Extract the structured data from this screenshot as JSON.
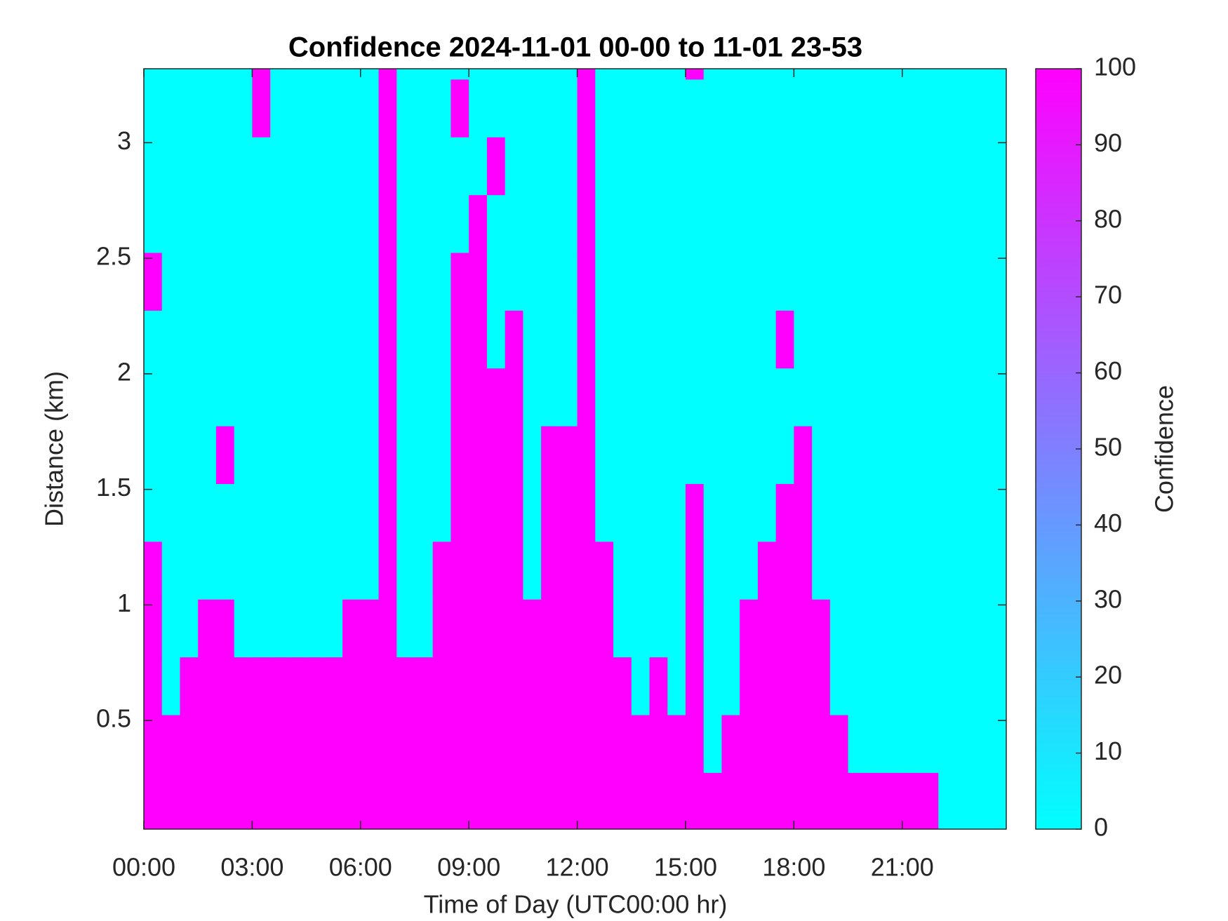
{
  "chart_data": {
    "type": "heatmap",
    "title": "Confidence 2024-11-01 00-00 to 11-01 23-53",
    "xlabel": "Time of Day (UTC00:00 hr)",
    "ylabel": "Distance (km)",
    "colorbar_label": "Confidence",
    "colormap": [
      "#00ffff",
      "#ff00ff"
    ],
    "clim": [
      0,
      100
    ],
    "cticks": [
      0,
      10,
      20,
      30,
      40,
      50,
      60,
      70,
      80,
      90,
      100
    ],
    "xlim": [
      0,
      23.88
    ],
    "xticks": [
      {
        "value": 0,
        "label": "00:00"
      },
      {
        "value": 3,
        "label": "03:00"
      },
      {
        "value": 6,
        "label": "06:00"
      },
      {
        "value": 9,
        "label": "09:00"
      },
      {
        "value": 12,
        "label": "12:00"
      },
      {
        "value": 15,
        "label": "15:00"
      },
      {
        "value": 18,
        "label": "18:00"
      },
      {
        "value": 21,
        "label": "21:00"
      }
    ],
    "ylim": [
      0.03,
      3.32
    ],
    "yticks": [
      0.5,
      1,
      1.5,
      2,
      2.5,
      3
    ],
    "x": [
      0.25,
      0.75,
      1.25,
      1.75,
      2.25,
      2.75,
      3.25,
      3.75,
      4.25,
      4.75,
      5.25,
      5.75,
      6.25,
      6.75,
      7.25,
      7.75,
      8.25,
      8.75,
      9.25,
      9.75,
      10.25,
      10.75,
      11.25,
      11.75,
      12.25,
      12.75,
      13.25,
      13.75,
      14.25,
      14.75,
      15.25,
      15.75,
      16.25,
      16.75,
      17.25,
      17.75,
      18.25,
      18.75,
      19.25,
      19.75,
      20.25,
      20.75,
      21.25,
      21.75,
      22.25,
      22.75,
      23.25,
      23.75
    ],
    "y": [
      0.15,
      0.4,
      0.65,
      0.9,
      1.15,
      1.4,
      1.65,
      1.9,
      2.15,
      2.4,
      2.65,
      2.9,
      3.15,
      3.4
    ],
    "z": [
      [
        100,
        100,
        100,
        100,
        100,
        100,
        100,
        100,
        100,
        100,
        100,
        100,
        100,
        100,
        100,
        100,
        100,
        100,
        100,
        100,
        100,
        100,
        100,
        100,
        100,
        100,
        100,
        100,
        100,
        100,
        100,
        100,
        100,
        100,
        100,
        100,
        100,
        100,
        100,
        100,
        100,
        100,
        100,
        100,
        0,
        0,
        0,
        0
      ],
      [
        100,
        100,
        100,
        100,
        100,
        100,
        100,
        100,
        100,
        100,
        100,
        100,
        100,
        100,
        100,
        100,
        100,
        100,
        100,
        100,
        100,
        100,
        100,
        100,
        100,
        100,
        100,
        100,
        100,
        100,
        100,
        0,
        100,
        100,
        100,
        100,
        100,
        100,
        100,
        0,
        0,
        0,
        0,
        0,
        0,
        0,
        0,
        0
      ],
      [
        100,
        0,
        100,
        100,
        100,
        100,
        100,
        100,
        100,
        100,
        100,
        100,
        100,
        100,
        100,
        100,
        100,
        100,
        100,
        100,
        100,
        100,
        100,
        100,
        100,
        100,
        100,
        0,
        100,
        0,
        100,
        0,
        0,
        100,
        100,
        100,
        100,
        100,
        0,
        0,
        0,
        0,
        0,
        0,
        0,
        0,
        0,
        0
      ],
      [
        100,
        0,
        0,
        100,
        100,
        0,
        0,
        0,
        0,
        0,
        0,
        100,
        100,
        100,
        0,
        0,
        100,
        100,
        100,
        100,
        100,
        100,
        100,
        100,
        100,
        100,
        0,
        0,
        0,
        0,
        100,
        0,
        0,
        100,
        100,
        100,
        100,
        100,
        0,
        0,
        0,
        0,
        0,
        0,
        0,
        0,
        0,
        0
      ],
      [
        100,
        0,
        0,
        0,
        0,
        0,
        0,
        0,
        0,
        0,
        0,
        0,
        0,
        100,
        0,
        0,
        100,
        100,
        100,
        100,
        100,
        0,
        100,
        100,
        100,
        100,
        0,
        0,
        0,
        0,
        100,
        0,
        0,
        0,
        100,
        100,
        100,
        0,
        0,
        0,
        0,
        0,
        0,
        0,
        0,
        0,
        0,
        0
      ],
      [
        0,
        0,
        0,
        0,
        0,
        0,
        0,
        0,
        0,
        0,
        0,
        0,
        0,
        100,
        0,
        0,
        0,
        100,
        100,
        100,
        100,
        0,
        100,
        100,
        100,
        0,
        0,
        0,
        0,
        0,
        100,
        0,
        0,
        0,
        0,
        100,
        100,
        0,
        0,
        0,
        0,
        0,
        0,
        0,
        0,
        0,
        0,
        0
      ],
      [
        0,
        0,
        0,
        0,
        100,
        0,
        0,
        0,
        0,
        0,
        0,
        0,
        0,
        100,
        0,
        0,
        0,
        100,
        100,
        100,
        100,
        0,
        100,
        100,
        100,
        0,
        0,
        0,
        0,
        0,
        0,
        0,
        0,
        0,
        0,
        0,
        100,
        0,
        0,
        0,
        0,
        0,
        0,
        0,
        0,
        0,
        0,
        0
      ],
      [
        0,
        0,
        0,
        0,
        0,
        0,
        0,
        0,
        0,
        0,
        0,
        0,
        0,
        100,
        0,
        0,
        0,
        100,
        100,
        100,
        100,
        0,
        0,
        0,
        100,
        0,
        0,
        0,
        0,
        0,
        0,
        0,
        0,
        0,
        0,
        0,
        0,
        0,
        0,
        0,
        0,
        0,
        0,
        0,
        0,
        0,
        0,
        0
      ],
      [
        0,
        0,
        0,
        0,
        0,
        0,
        0,
        0,
        0,
        0,
        0,
        0,
        0,
        100,
        0,
        0,
        0,
        100,
        100,
        0,
        100,
        0,
        0,
        0,
        100,
        0,
        0,
        0,
        0,
        0,
        0,
        0,
        0,
        0,
        0,
        100,
        0,
        0,
        0,
        0,
        0,
        0,
        0,
        0,
        0,
        0,
        0,
        0
      ],
      [
        100,
        0,
        0,
        0,
        0,
        0,
        0,
        0,
        0,
        0,
        0,
        0,
        0,
        100,
        0,
        0,
        0,
        100,
        100,
        0,
        0,
        0,
        0,
        0,
        100,
        0,
        0,
        0,
        0,
        0,
        0,
        0,
        0,
        0,
        0,
        0,
        0,
        0,
        0,
        0,
        0,
        0,
        0,
        0,
        0,
        0,
        0,
        0
      ],
      [
        0,
        0,
        0,
        0,
        0,
        0,
        0,
        0,
        0,
        0,
        0,
        0,
        0,
        100,
        0,
        0,
        0,
        0,
        100,
        0,
        0,
        0,
        0,
        0,
        100,
        0,
        0,
        0,
        0,
        0,
        0,
        0,
        0,
        0,
        0,
        0,
        0,
        0,
        0,
        0,
        0,
        0,
        0,
        0,
        0,
        0,
        0,
        0
      ],
      [
        0,
        0,
        0,
        0,
        0,
        0,
        0,
        0,
        0,
        0,
        0,
        0,
        0,
        100,
        0,
        0,
        0,
        0,
        0,
        100,
        0,
        0,
        0,
        0,
        100,
        0,
        0,
        0,
        0,
        0,
        0,
        0,
        0,
        0,
        0,
        0,
        0,
        0,
        0,
        0,
        0,
        0,
        0,
        0,
        0,
        0,
        0,
        0
      ],
      [
        0,
        0,
        0,
        0,
        0,
        0,
        100,
        0,
        0,
        0,
        0,
        0,
        0,
        100,
        0,
        0,
        0,
        100,
        0,
        0,
        0,
        0,
        0,
        0,
        100,
        0,
        0,
        0,
        0,
        0,
        0,
        0,
        0,
        0,
        0,
        0,
        0,
        0,
        0,
        0,
        0,
        0,
        0,
        0,
        0,
        0,
        0,
        0
      ],
      [
        0,
        0,
        0,
        0,
        0,
        0,
        100,
        0,
        0,
        0,
        0,
        0,
        0,
        100,
        0,
        0,
        0,
        0,
        0,
        0,
        0,
        0,
        0,
        0,
        100,
        0,
        0,
        0,
        0,
        0,
        100,
        0,
        0,
        0,
        0,
        0,
        0,
        0,
        0,
        0,
        0,
        0,
        0,
        0,
        0,
        0,
        0,
        0
      ]
    ]
  }
}
